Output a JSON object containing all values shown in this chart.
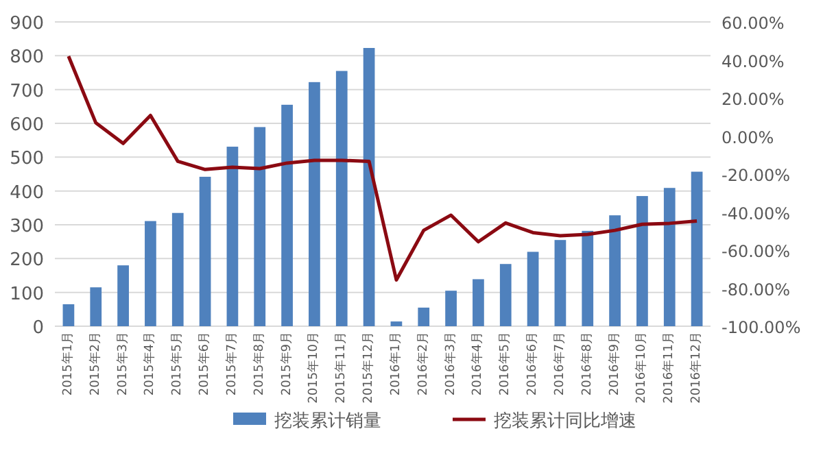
{
  "chart_data": {
    "type": "bar",
    "categories": [
      "2015年1月",
      "2015年2月",
      "2015年3月",
      "2015年4月",
      "2015年5月",
      "2015年6月",
      "2015年7月",
      "2015年8月",
      "2015年9月",
      "2015年10月",
      "2015年11月",
      "2015年12月",
      "2016年1月",
      "2016年2月",
      "2016年3月",
      "2016年4月",
      "2016年5月",
      "2016年6月",
      "2016年7月",
      "2016年8月",
      "2016年9月",
      "2016年10月",
      "2016年11月",
      "2016年12月"
    ],
    "series": [
      {
        "name": "挖装累计销量",
        "color": "#4f81bd",
        "values": [
          65,
          115,
          180,
          311,
          335,
          442,
          531,
          589,
          655,
          722,
          755,
          823,
          14,
          55,
          105,
          139,
          184,
          220,
          255,
          282,
          328,
          385,
          409,
          457
        ]
      },
      {
        "name": "挖装累计同比增速",
        "type": "line",
        "axis": "y2",
        "color": "#8b0a12",
        "values": [
          42,
          6.9,
          -3.9,
          10.8,
          -13.3,
          -17.6,
          -16.4,
          -17.1,
          -14.2,
          -12.8,
          -12.8,
          -13.3,
          -75.7,
          -49.6,
          -41.6,
          -55.6,
          -45.7,
          -50.8,
          -52.4,
          -51.7,
          -49.6,
          -46.4,
          -45.9,
          -44.7
        ]
      }
    ],
    "ylim": [
      0,
      900
    ],
    "yticks": [
      0,
      100,
      200,
      300,
      400,
      500,
      600,
      700,
      800,
      900
    ],
    "y2lim": [
      -100,
      60
    ],
    "y2ticks": [
      {
        "value": -100,
        "label": "-100.00%"
      },
      {
        "value": -80,
        "label": "-80.00%"
      },
      {
        "value": -60,
        "label": "-60.00%"
      },
      {
        "value": -40,
        "label": "-40.00%"
      },
      {
        "value": -20,
        "label": "-20.00%"
      },
      {
        "value": 0,
        "label": "0.00%"
      },
      {
        "value": 20,
        "label": "20.00%"
      },
      {
        "value": 40,
        "label": "40.00%"
      },
      {
        "value": 60,
        "label": "60.00%"
      }
    ],
    "grid": "y",
    "legend": "bottom"
  }
}
